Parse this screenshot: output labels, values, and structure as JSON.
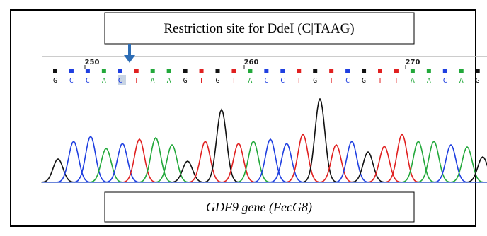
{
  "header": {
    "label": "Restriction site for DdeI (C|TAAG)"
  },
  "positions": [
    {
      "number": 250
    },
    {
      "number": 260
    },
    {
      "number": 270
    }
  ],
  "bases": [
    "G",
    "C",
    "C",
    "A",
    "C",
    "T",
    "A",
    "A",
    "G",
    "T",
    "G",
    "T",
    "A",
    "C",
    "C",
    "T",
    "G",
    "T",
    "C",
    "G",
    "T",
    "T",
    "A",
    "A",
    "C",
    "A",
    "G"
  ],
  "footer": {
    "label": "GDF9 gene (FecG8)"
  }
}
